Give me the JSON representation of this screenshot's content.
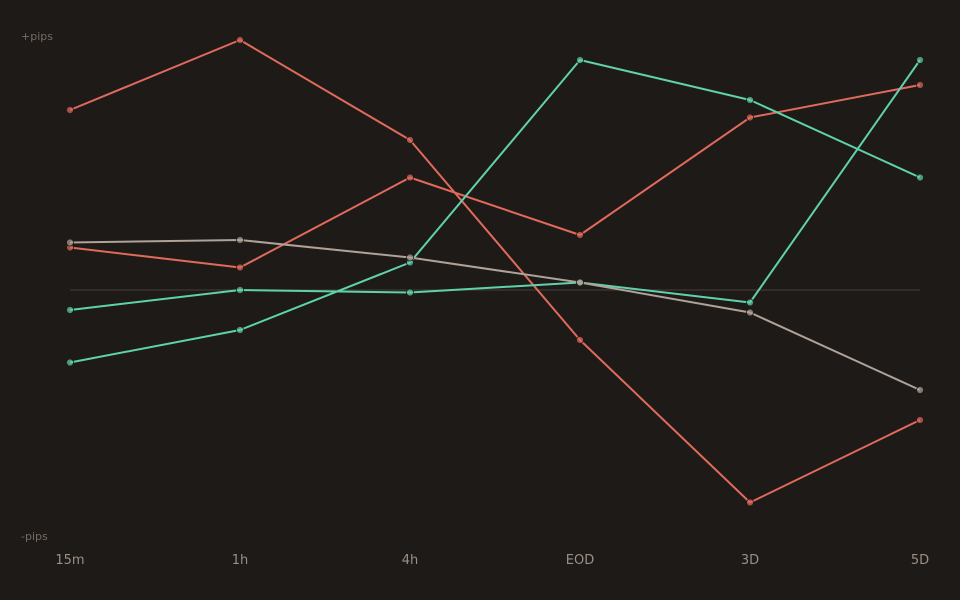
{
  "chart_data": {
    "type": "line",
    "categories": [
      "15m",
      "1h",
      "4h",
      "EOD",
      "3D",
      "5D"
    ],
    "y_top_label": "+pips",
    "y_bottom_label": "-pips",
    "ylim": [
      -100,
      100
    ],
    "zero_line": true,
    "grid": false,
    "legend": "none",
    "series": [
      {
        "color": "#e06a5c",
        "values": [
          72,
          100,
          60,
          -20,
          -85,
          -52
        ]
      },
      {
        "color": "#e06a5c",
        "values": [
          17,
          9,
          45,
          22,
          69,
          82
        ]
      },
      {
        "color": "#5fd2ac",
        "values": [
          -8,
          0,
          -1,
          3,
          -5,
          92
        ]
      },
      {
        "color": "#5fd2ac",
        "values": [
          -29,
          -16,
          11,
          92,
          76,
          45
        ]
      },
      {
        "color": "#aea299",
        "values": [
          19,
          20,
          13,
          3,
          -9,
          -40
        ]
      }
    ],
    "colors": {
      "background": "#1e1a17",
      "label": "#756b63",
      "tick": "#9a8f86",
      "zero_line": "#3a332e"
    }
  }
}
